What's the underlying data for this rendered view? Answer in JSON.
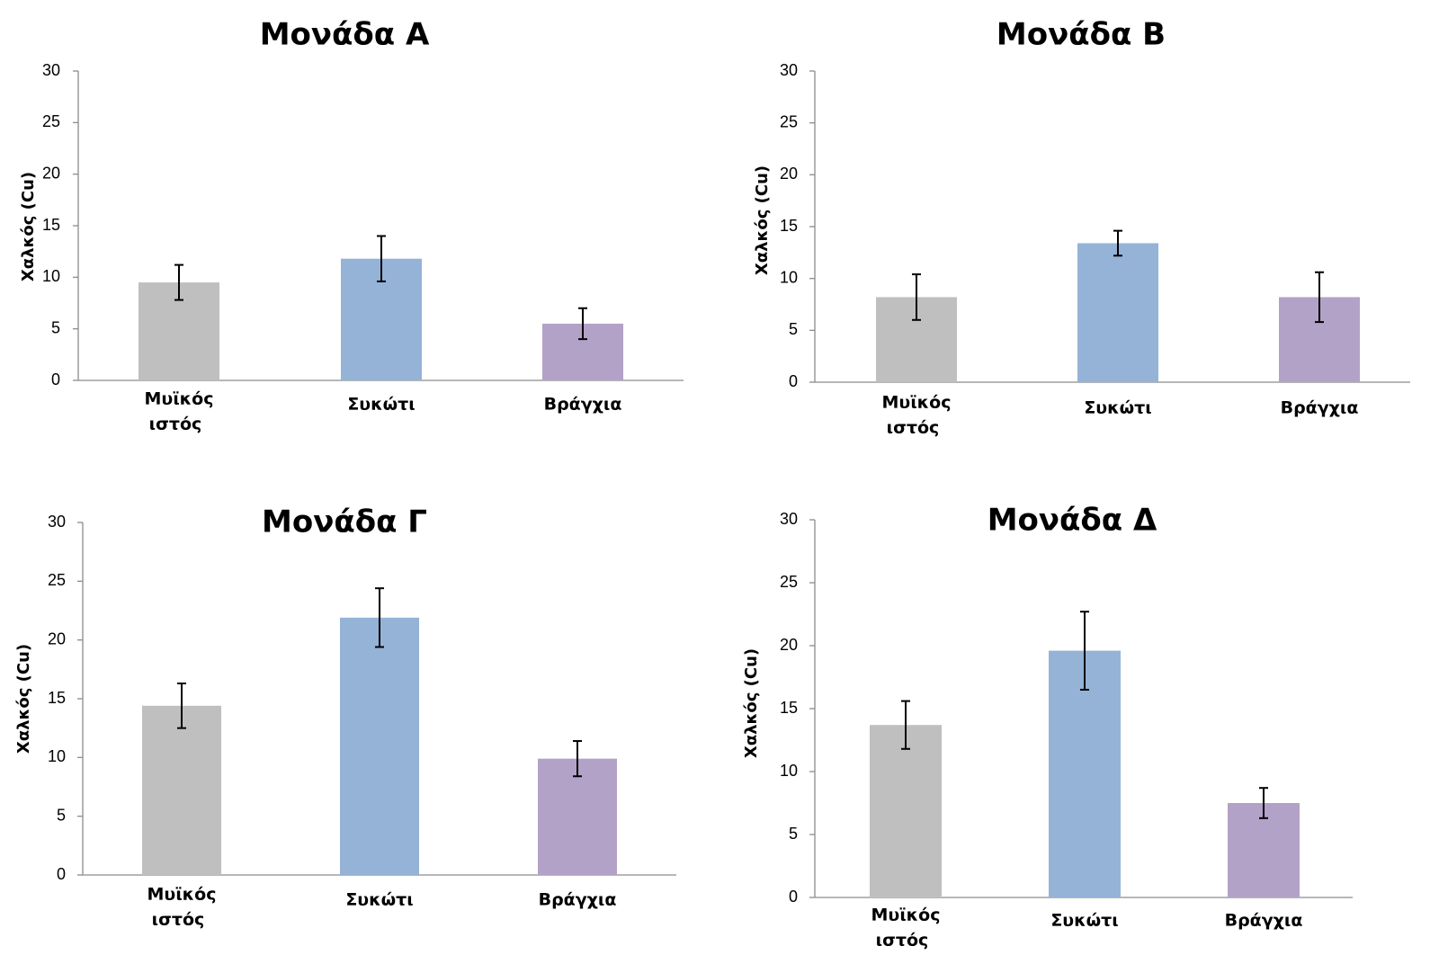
{
  "chart_data": [
    {
      "type": "bar",
      "title": "Μονάδα Α",
      "ylabel": "Χαλκός (Cu)",
      "xlabel": "",
      "categories": [
        [
          "Μυϊκός",
          "ιστός"
        ],
        [
          "Συκώτι"
        ],
        [
          "Βράγχια"
        ]
      ],
      "values": [
        9.5,
        11.8,
        5.5
      ],
      "errors": [
        1.7,
        2.2,
        1.5
      ],
      "colors": [
        "#bfbfbf",
        "#95b3d7",
        "#b3a2c7"
      ],
      "ylim": [
        0,
        30
      ],
      "yticks": [
        "0",
        "5",
        "10",
        "15",
        "20",
        "25",
        "30"
      ],
      "grid": false,
      "legend": "none"
    },
    {
      "type": "bar",
      "title": "Μονάδα Β",
      "ylabel": "Χαλκός (Cu)",
      "xlabel": "",
      "categories": [
        [
          "Μυϊκός",
          "ιστός"
        ],
        [
          "Συκώτι"
        ],
        [
          "Βράγχια"
        ]
      ],
      "values": [
        8.2,
        13.4,
        8.2
      ],
      "errors": [
        2.2,
        1.2,
        2.4
      ],
      "colors": [
        "#bfbfbf",
        "#95b3d7",
        "#b3a2c7"
      ],
      "ylim": [
        0,
        30
      ],
      "yticks": [
        "0",
        "5",
        "10",
        "15",
        "20",
        "25",
        "30"
      ],
      "grid": false,
      "legend": "none"
    },
    {
      "type": "bar",
      "title": "Μονάδα Γ",
      "ylabel": "Χαλκός (Cu)",
      "xlabel": "",
      "categories": [
        [
          "Μυϊκός",
          "ιστός"
        ],
        [
          "Συκώτι"
        ],
        [
          "Βράγχια"
        ]
      ],
      "values": [
        14.4,
        21.9,
        9.9
      ],
      "errors": [
        1.9,
        2.5,
        1.5
      ],
      "colors": [
        "#bfbfbf",
        "#95b3d7",
        "#b3a2c7"
      ],
      "ylim": [
        0,
        30
      ],
      "yticks": [
        "0",
        "5",
        "10",
        "15",
        "20",
        "25",
        "30"
      ],
      "grid": false,
      "legend": "none"
    },
    {
      "type": "bar",
      "title": "Μονάδα Δ",
      "ylabel": "Χαλκός (Cu)",
      "xlabel": "",
      "categories": [
        [
          "Μυϊκός",
          "ιστός"
        ],
        [
          "Συκώτι"
        ],
        [
          "Βράγχια"
        ]
      ],
      "values": [
        13.7,
        19.6,
        7.5
      ],
      "errors": [
        1.9,
        3.1,
        1.2
      ],
      "colors": [
        "#bfbfbf",
        "#95b3d7",
        "#b3a2c7"
      ],
      "ylim": [
        0,
        30
      ],
      "yticks": [
        "0",
        "5",
        "10",
        "15",
        "20",
        "25",
        "30"
      ],
      "grid": false,
      "legend": "none"
    }
  ]
}
